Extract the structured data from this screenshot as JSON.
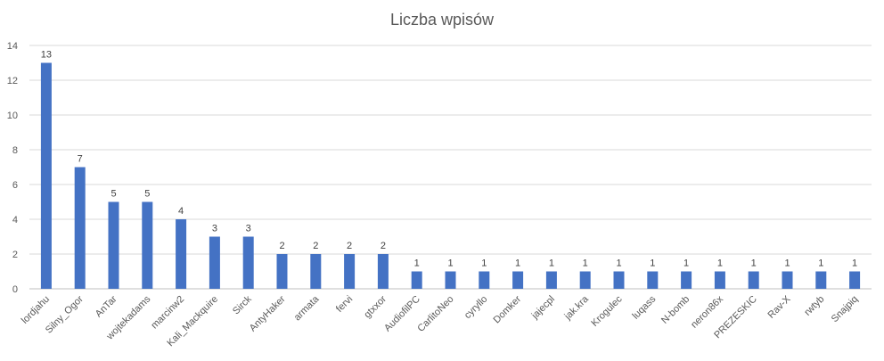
{
  "chart_data": {
    "type": "bar",
    "title": "Liczba wpisów",
    "xlabel": "",
    "ylabel": "",
    "ylim": [
      0,
      14
    ],
    "yticks": [
      0,
      2,
      4,
      6,
      8,
      10,
      12,
      14
    ],
    "grid": true,
    "legend": "none",
    "colors": {
      "bar": "#4472C4",
      "grid": "#D9D9D9",
      "axis": "#BFBFBF"
    },
    "categories": [
      "lordjahu",
      "Silny_Ogor",
      "AnTar",
      "wojtekadams",
      "marcinw2",
      "Kali_Mackquire",
      "Sirck",
      "AntyHaker",
      "armata",
      "fervi",
      "gtxxor",
      "AudiofilPC",
      "CarlitoNeo",
      "cyryllo",
      "Domker",
      "jajecpl",
      "jak.kra",
      "Krogulec",
      "luqass",
      "N-bomb",
      "neron86x",
      "PREZESKIC",
      "Rav-X",
      "rwtyb",
      "Snajpiq"
    ],
    "values": [
      13,
      7,
      5,
      5,
      4,
      3,
      3,
      2,
      2,
      2,
      2,
      1,
      1,
      1,
      1,
      1,
      1,
      1,
      1,
      1,
      1,
      1,
      1,
      1,
      1
    ]
  }
}
